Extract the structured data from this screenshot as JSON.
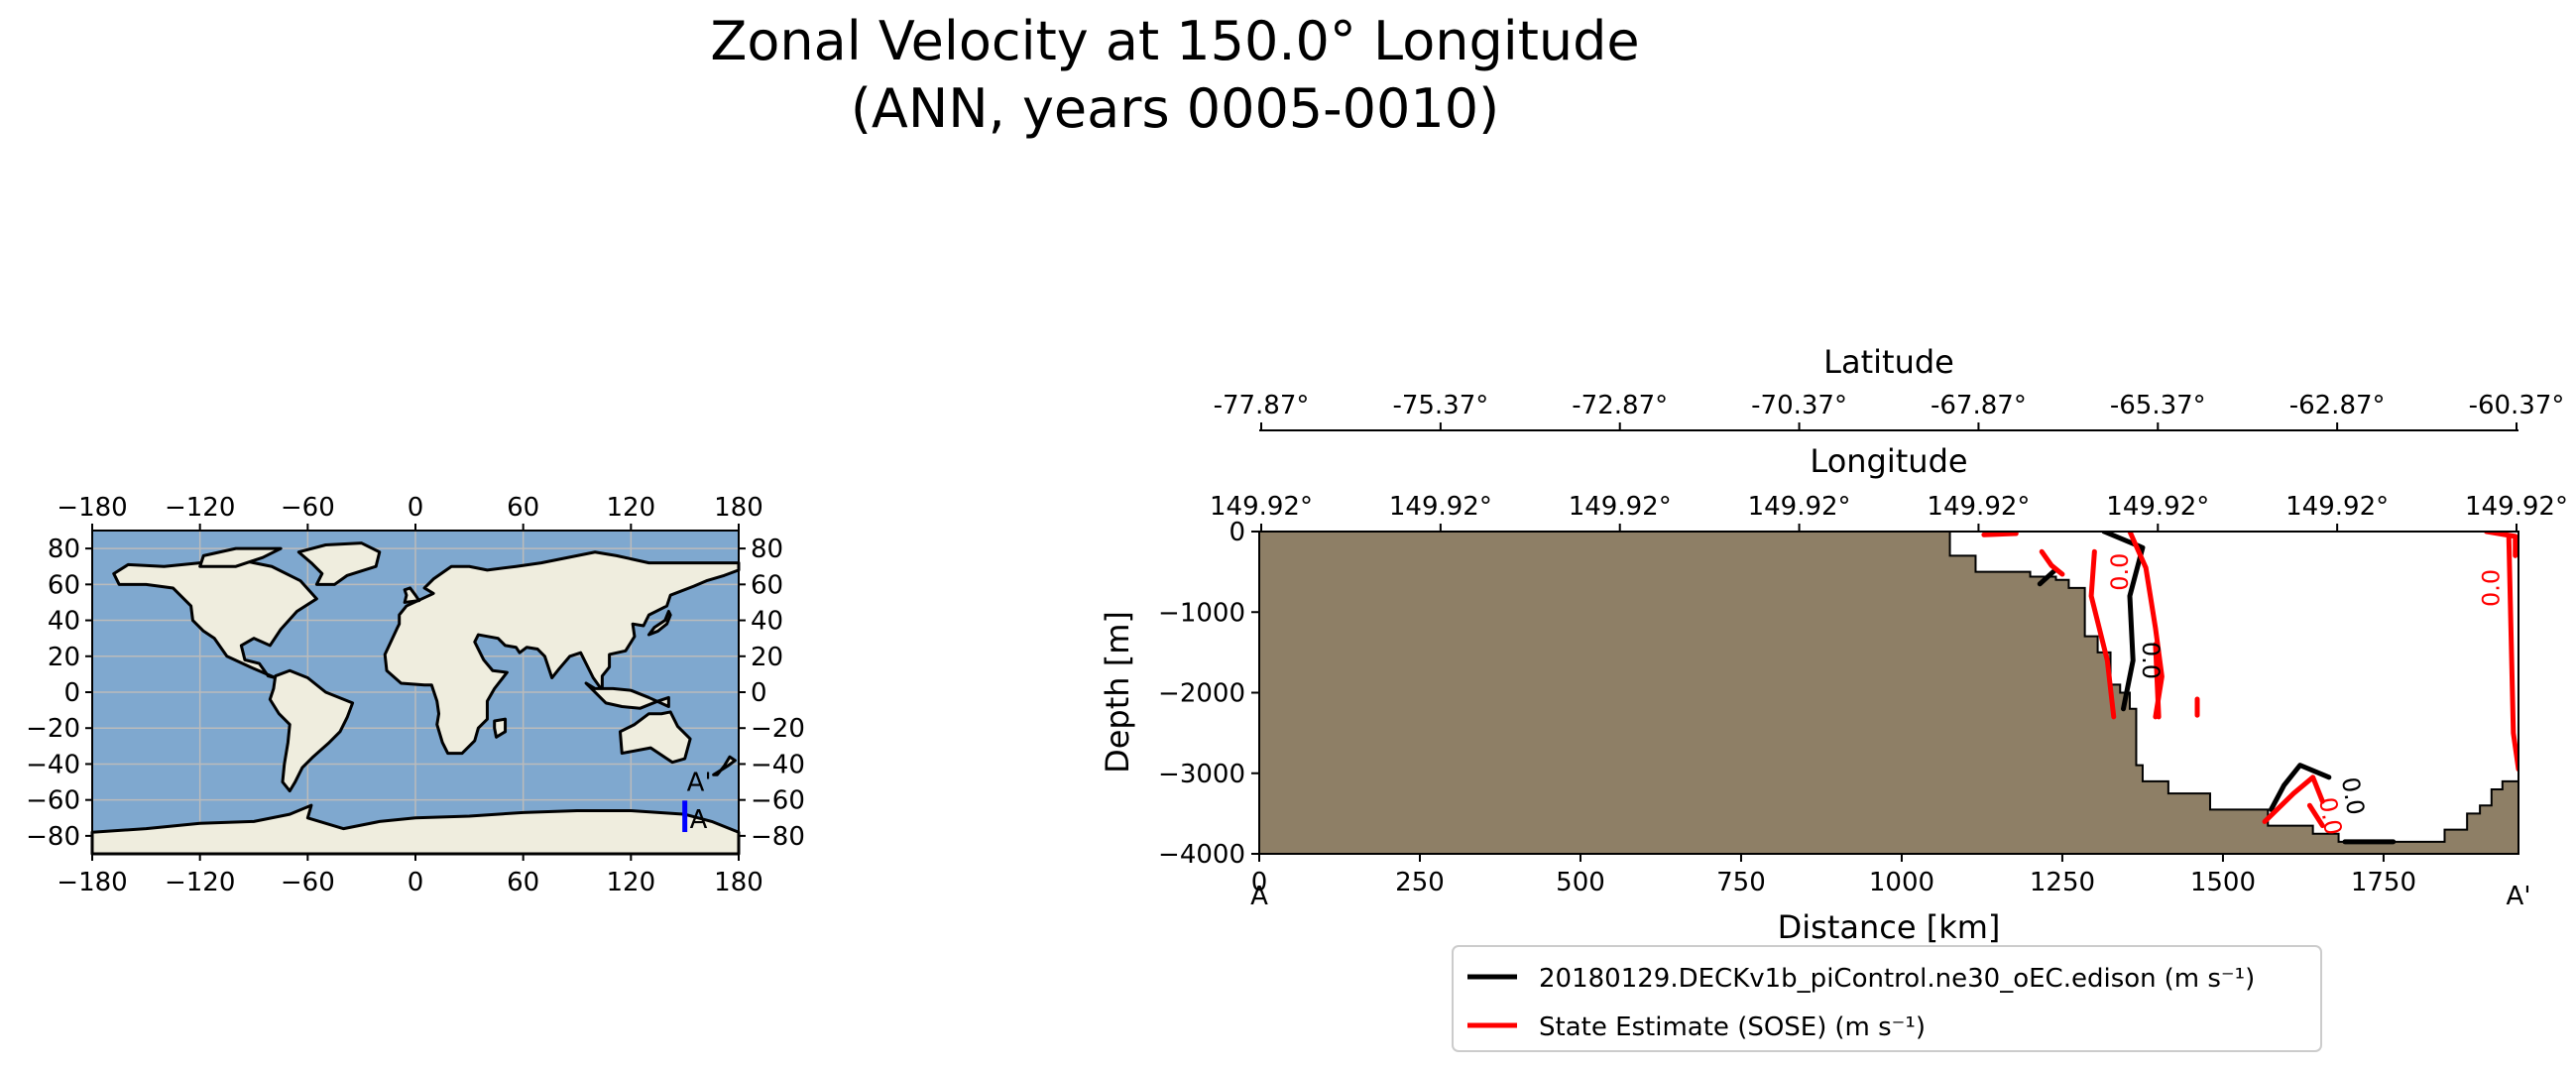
{
  "title": {
    "line1": "Zonal Velocity at 150.0° Longitude",
    "line2": "(ANN, years 0005-0010)"
  },
  "colors": {
    "ocean": "#7fa8cf",
    "land": "#efedde",
    "bathymetry": "#8e7f66",
    "transect": "#0000ff",
    "model": "#000000",
    "obs": "#ff0000"
  },
  "map": {
    "xticks": [
      "−180",
      "−120",
      "−60",
      "0",
      "60",
      "120",
      "180"
    ],
    "xtick_values": [
      -180,
      -120,
      -60,
      0,
      60,
      120,
      180
    ],
    "yticks": [
      "80",
      "60",
      "40",
      "20",
      "0",
      "−20",
      "−40",
      "−60",
      "−80"
    ],
    "ytick_values": [
      80,
      60,
      40,
      20,
      0,
      -20,
      -40,
      -60,
      -80
    ],
    "transect": {
      "lon": 150.0,
      "lat_start": -77.87,
      "lat_end": -60.37
    },
    "start_label": "A",
    "end_label": "A'"
  },
  "chart_data": {
    "type": "line",
    "title": "Zonal Velocity at 150.0° Longitude (ANN, years 0005-0010)",
    "xlabel": "Distance [km]",
    "ylabel": "Depth [m]",
    "xlim": [
      0,
      1960
    ],
    "ylim": [
      -4000,
      0
    ],
    "xticks": [
      0,
      250,
      500,
      750,
      1000,
      1250,
      1500,
      1750
    ],
    "xtick_labels": [
      "0",
      "250",
      "500",
      "750",
      "1000",
      "1250",
      "1500",
      "1750"
    ],
    "yticks": [
      0,
      -1000,
      -2000,
      -3000,
      -4000
    ],
    "ytick_labels": [
      "0",
      "−1000",
      "−2000",
      "−3000",
      "−4000"
    ],
    "section_start": "A",
    "section_end": "A'",
    "top_axes": [
      {
        "label": "Latitude",
        "ticks": [
          "-77.87°",
          "-75.37°",
          "-72.87°",
          "-70.37°",
          "-67.87°",
          "-65.37°",
          "-62.87°",
          "-60.37°"
        ]
      },
      {
        "label": "Longitude",
        "ticks": [
          "149.92°",
          "149.92°",
          "149.92°",
          "149.92°",
          "149.92°",
          "149.92°",
          "149.92°",
          "149.92°"
        ]
      }
    ],
    "bathymetry": [
      [
        0,
        -4000
      ],
      [
        0,
        0
      ],
      [
        1075,
        0
      ],
      [
        1075,
        -300
      ],
      [
        1115,
        -300
      ],
      [
        1115,
        -500
      ],
      [
        1200,
        -500
      ],
      [
        1200,
        -560
      ],
      [
        1240,
        -560
      ],
      [
        1240,
        -600
      ],
      [
        1260,
        -600
      ],
      [
        1260,
        -700
      ],
      [
        1285,
        -700
      ],
      [
        1285,
        -1300
      ],
      [
        1305,
        -1300
      ],
      [
        1305,
        -1500
      ],
      [
        1325,
        -1500
      ],
      [
        1325,
        -1900
      ],
      [
        1340,
        -1900
      ],
      [
        1340,
        -2000
      ],
      [
        1355,
        -2000
      ],
      [
        1355,
        -2200
      ],
      [
        1365,
        -2200
      ],
      [
        1365,
        -2900
      ],
      [
        1375,
        -2900
      ],
      [
        1375,
        -3100
      ],
      [
        1415,
        -3100
      ],
      [
        1415,
        -3250
      ],
      [
        1480,
        -3250
      ],
      [
        1480,
        -3450
      ],
      [
        1570,
        -3450
      ],
      [
        1570,
        -3650
      ],
      [
        1640,
        -3650
      ],
      [
        1640,
        -3750
      ],
      [
        1680,
        -3750
      ],
      [
        1680,
        -3850
      ],
      [
        1845,
        -3850
      ],
      [
        1845,
        -3700
      ],
      [
        1880,
        -3700
      ],
      [
        1880,
        -3500
      ],
      [
        1900,
        -3500
      ],
      [
        1900,
        -3400
      ],
      [
        1918,
        -3400
      ],
      [
        1918,
        -3200
      ],
      [
        1935,
        -3200
      ],
      [
        1935,
        -3100
      ],
      [
        1960,
        -3100
      ],
      [
        1960,
        -4000
      ]
    ],
    "series": [
      {
        "name": "20180129.DECKv1b_piControl.ne30_oEC.edison",
        "units": "(m s⁻¹)",
        "color": "#000000",
        "contour_level": "0.0",
        "lines": [
          [
            [
              1315,
              0
            ],
            [
              1375,
              -200
            ],
            [
              1355,
              -800
            ],
            [
              1360,
              -1600
            ],
            [
              1345,
              -2200
            ]
          ],
          [
            [
              1215,
              -650
            ],
            [
              1240,
              -470
            ]
          ],
          [
            [
              1575,
              -3450
            ],
            [
              1595,
              -3150
            ],
            [
              1620,
              -2900
            ],
            [
              1665,
              -3050
            ]
          ],
          [
            [
              1690,
              -3850
            ],
            [
              1765,
              -3850
            ]
          ]
        ]
      },
      {
        "name": "State Estimate (SOSE)",
        "units": "(m s⁻¹)",
        "color": "#ff0000",
        "contour_level": "0.0",
        "lines": [
          [
            [
              1300,
              -250
            ],
            [
              1295,
              -800
            ],
            [
              1320,
              -1600
            ],
            [
              1330,
              -2300
            ]
          ],
          [
            [
              1355,
              0
            ],
            [
              1380,
              -450
            ],
            [
              1395,
              -1200
            ],
            [
              1405,
              -1800
            ],
            [
              1395,
              -2300
            ]
          ],
          [
            [
              1395,
              -1400
            ],
            [
              1400,
              -2300
            ]
          ],
          [
            [
              1460,
              -2080
            ],
            [
              1460,
              -2280
            ]
          ],
          [
            [
              1910,
              0
            ],
            [
              1955,
              -60
            ],
            [
              1955,
              -300
            ]
          ],
          [
            [
              1945,
              -80
            ],
            [
              1952,
              -2500
            ],
            [
              1960,
              -2950
            ]
          ],
          [
            [
              1565,
              -3600
            ],
            [
              1610,
              -3250
            ],
            [
              1640,
              -3050
            ],
            [
              1655,
              -3350
            ]
          ],
          [
            [
              1635,
              -3400
            ],
            [
              1655,
              -3650
            ]
          ],
          [
            [
              1128,
              -40
            ],
            [
              1178,
              -25
            ]
          ],
          [
            [
              1218,
              -250
            ],
            [
              1233,
              -420
            ],
            [
              1250,
              -530
            ]
          ]
        ]
      }
    ],
    "contour_labels": [
      {
        "text": "0.0",
        "x": 1352,
        "y": -500,
        "color": "#ff0000",
        "rotate": -90
      },
      {
        "text": "0.0",
        "x": 1375,
        "y": -1600,
        "color": "#000000",
        "rotate": 90
      },
      {
        "text": "0.0",
        "x": 1930,
        "y": -700,
        "color": "#ff0000",
        "rotate": -90
      },
      {
        "text": "0.0",
        "x": 1690,
        "y": -3300,
        "color": "#000000",
        "rotate": 80
      },
      {
        "text": "0.0",
        "x": 1655,
        "y": -3550,
        "color": "#ff0000",
        "rotate": 80
      }
    ]
  }
}
